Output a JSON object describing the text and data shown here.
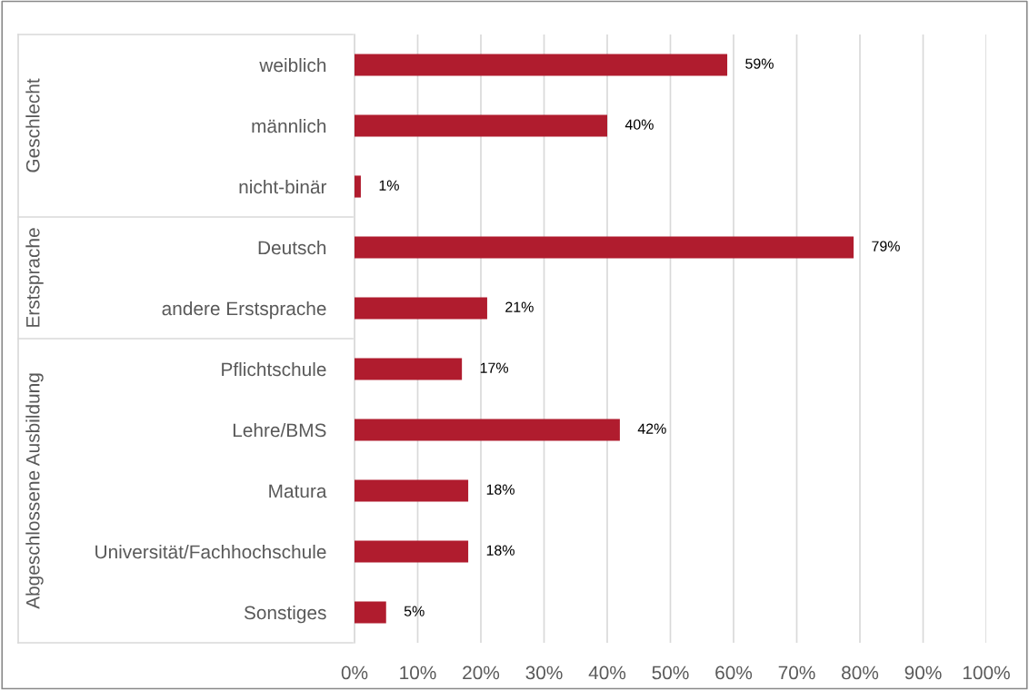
{
  "chart_data": {
    "type": "bar",
    "orientation": "horizontal",
    "categories": [
      "weiblich",
      "männlich",
      "nicht-binär",
      "Deutsch",
      "andere Erstsprache",
      "Pflichtschule",
      "Lehre/BMS",
      "Matura",
      "Universität/Fachhochschule",
      "Sonstiges"
    ],
    "values": [
      59,
      40,
      1,
      79,
      21,
      17,
      42,
      18,
      18,
      5
    ],
    "value_labels": [
      "59%",
      "40%",
      "1%",
      "79%",
      "21%",
      "17%",
      "42%",
      "18%",
      "18%",
      "5%"
    ],
    "color": "#b01c2e",
    "xlim": [
      0,
      100
    ],
    "xticks": [
      {
        "value": 0,
        "label": "0%"
      },
      {
        "value": 10,
        "label": "10%"
      },
      {
        "value": 20,
        "label": "20%"
      },
      {
        "value": 30,
        "label": "30%"
      },
      {
        "value": 40,
        "label": "40%"
      },
      {
        "value": 50,
        "label": "50%"
      },
      {
        "value": 60,
        "label": "60%"
      },
      {
        "value": 70,
        "label": "70%"
      },
      {
        "value": 80,
        "label": "80%"
      },
      {
        "value": 90,
        "label": "90%"
      },
      {
        "value": 100,
        "label": "100%"
      }
    ],
    "grid": "x",
    "annotations": [
      "Geschlecht",
      "Erstsprache",
      "Abgeschlossene Ausbildung"
    ]
  }
}
